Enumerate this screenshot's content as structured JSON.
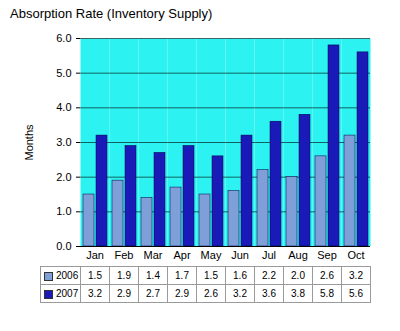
{
  "chart_data": {
    "type": "bar",
    "title": "Absorption Rate (Inventory Supply)",
    "y_label": "Months",
    "categories": [
      "Jan",
      "Feb",
      "Mar",
      "Apr",
      "May",
      "Jun",
      "Jul",
      "Aug",
      "Sep",
      "Oct"
    ],
    "series": [
      {
        "name": "2006",
        "color": "#7f9fd8",
        "values": [
          1.5,
          1.9,
          1.4,
          1.7,
          1.5,
          1.6,
          2.2,
          2.0,
          2.6,
          3.2
        ],
        "value_labels": [
          "1.5",
          "1.9",
          "1.4",
          "1.7",
          "1.5",
          "1.6",
          "2.2",
          "2.0",
          "2.6",
          "3.2"
        ]
      },
      {
        "name": "2007",
        "color": "#1a1ab8",
        "values": [
          3.2,
          2.9,
          2.7,
          2.9,
          2.6,
          3.2,
          3.6,
          3.8,
          5.8,
          5.6
        ],
        "value_labels": [
          "3.2",
          "2.9",
          "2.7",
          "2.9",
          "2.6",
          "3.2",
          "3.6",
          "3.8",
          "5.8",
          "5.6"
        ]
      }
    ],
    "ylim": [
      0,
      6
    ],
    "yticks": [
      {
        "value": 0,
        "label": "0.0"
      },
      {
        "value": 1,
        "label": "1.0"
      },
      {
        "value": 2,
        "label": "2.0"
      },
      {
        "value": 3,
        "label": "3.0"
      },
      {
        "value": 4,
        "label": "4.0"
      },
      {
        "value": 5,
        "label": "5.0"
      },
      {
        "value": 6,
        "label": "6.0"
      }
    ],
    "grid": true
  }
}
